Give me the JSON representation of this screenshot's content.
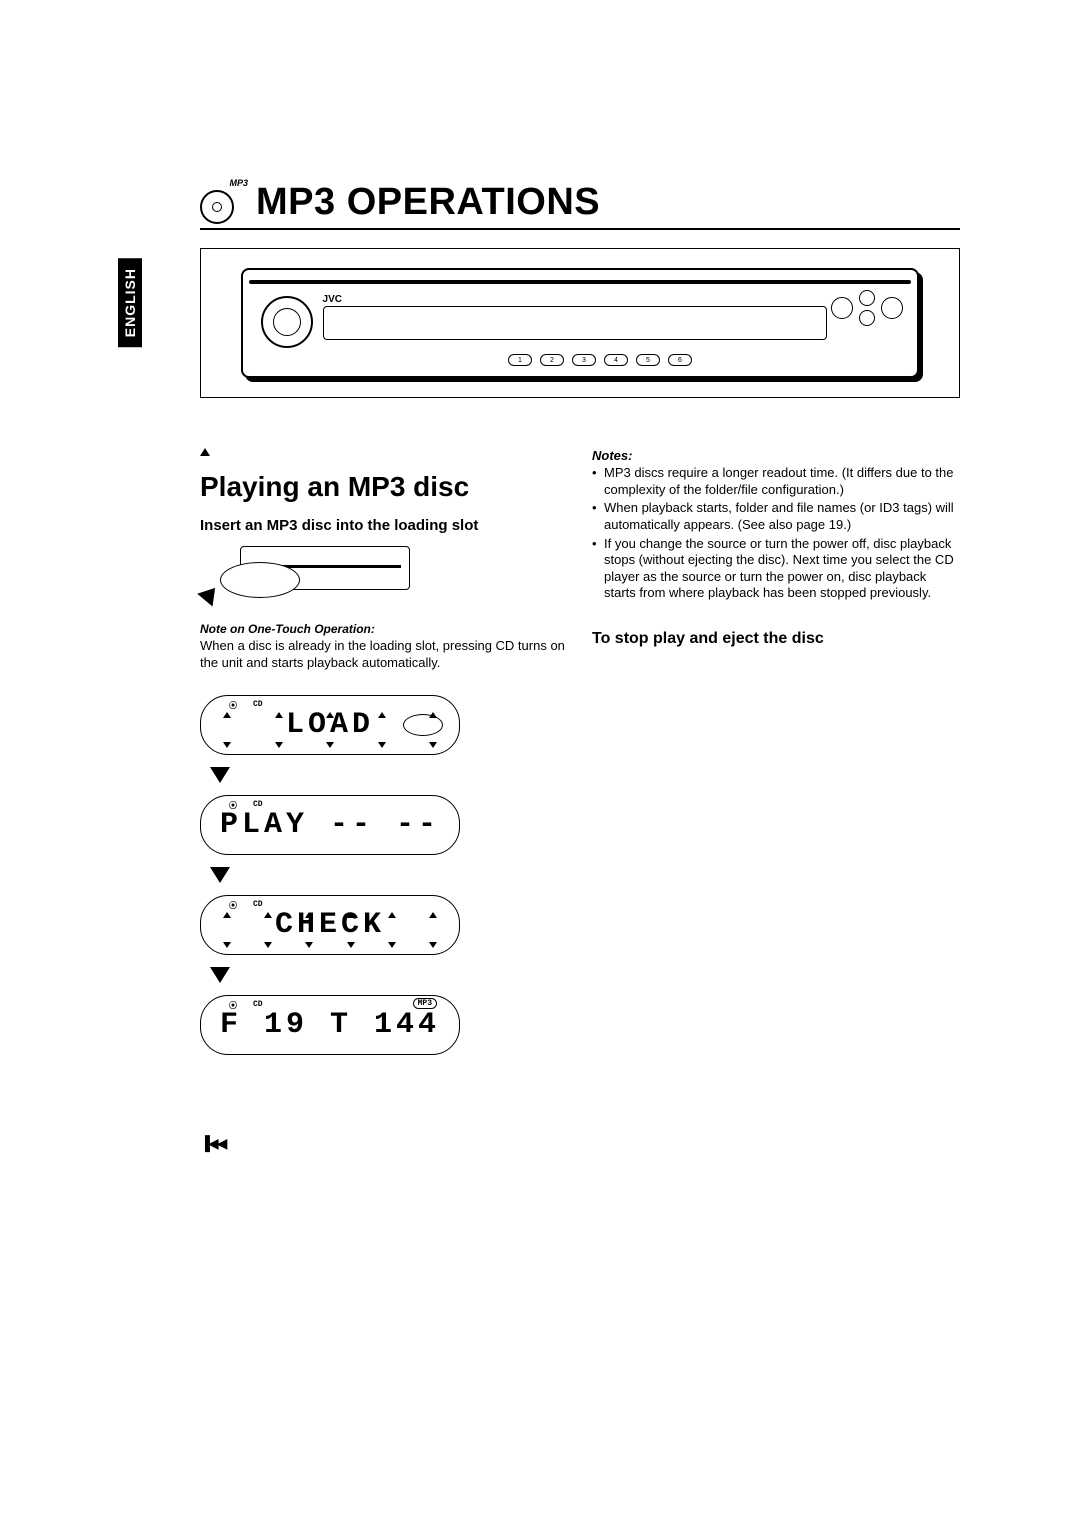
{
  "language_tab": "ENGLISH",
  "header": {
    "icon_label": "MP3",
    "title": "MP3 OPERATIONS"
  },
  "device": {
    "brand": "JVC",
    "buttons": [
      "1",
      "2",
      "3",
      "4",
      "5",
      "6"
    ]
  },
  "left": {
    "section_heading": "Playing an MP3 disc",
    "insert_heading": "Insert an MP3 disc into the loading slot",
    "note_label": "Note on One-Touch Operation:",
    "note_body": "When a disc is already in the loading slot, pressing CD turns on the unit and starts playback automatically.",
    "lcd": {
      "ind_disc": "⦿",
      "ind_cd": "CD",
      "mp3_tag": "MP3",
      "screens": [
        "LOAD",
        "PLAY  -- --",
        "CHECK",
        "F 19  T 144"
      ]
    }
  },
  "right": {
    "notes_heading": "Notes:",
    "notes": [
      "MP3 discs require a longer readout time. (It differs due to the complexity of the folder/file configuration.)",
      "When playback starts, folder and file names (or ID3 tags) will automatically appears. (See also page 19.)",
      "If you change the source or turn the power off, disc playback stops (without ejecting the disc). Next time you select the CD player as the source or turn the power on, disc playback starts from where playback has been stopped previously."
    ],
    "stop_heading": "To stop play and eject the disc"
  },
  "styling": {
    "page_bg": "#ffffff",
    "text_color": "#000000",
    "title_fontsize": 38,
    "section_fontsize": 28,
    "body_fontsize": 13,
    "border_color": "#000000",
    "tab_bg": "#000000",
    "tab_fg": "#ffffff"
  }
}
